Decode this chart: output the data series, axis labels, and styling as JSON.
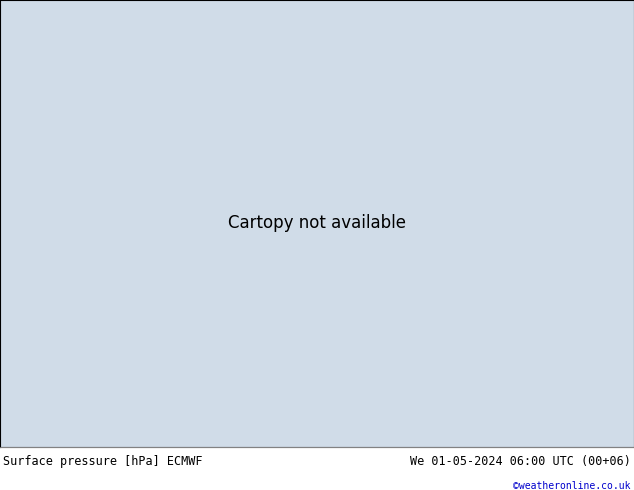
{
  "title_left": "Surface pressure [hPa] ECMWF",
  "title_right": "We 01-05-2024 06:00 UTC (00+06)",
  "title_right2": "©weatheronline.co.uk",
  "title_right2_color": "#0000cc",
  "ocean_color": "#d0dce8",
  "land_color": "#c8e8b0",
  "border_color": "#888888",
  "coast_color": "#555555",
  "text_color": "#000000",
  "bottom_bar_color": "#ffffff",
  "figwidth": 6.34,
  "figheight": 4.9,
  "dpi": 100,
  "map_extent": [
    -20,
    55,
    -40,
    40
  ],
  "title_fontsize": 8.5,
  "copy_fontsize": 7.0
}
